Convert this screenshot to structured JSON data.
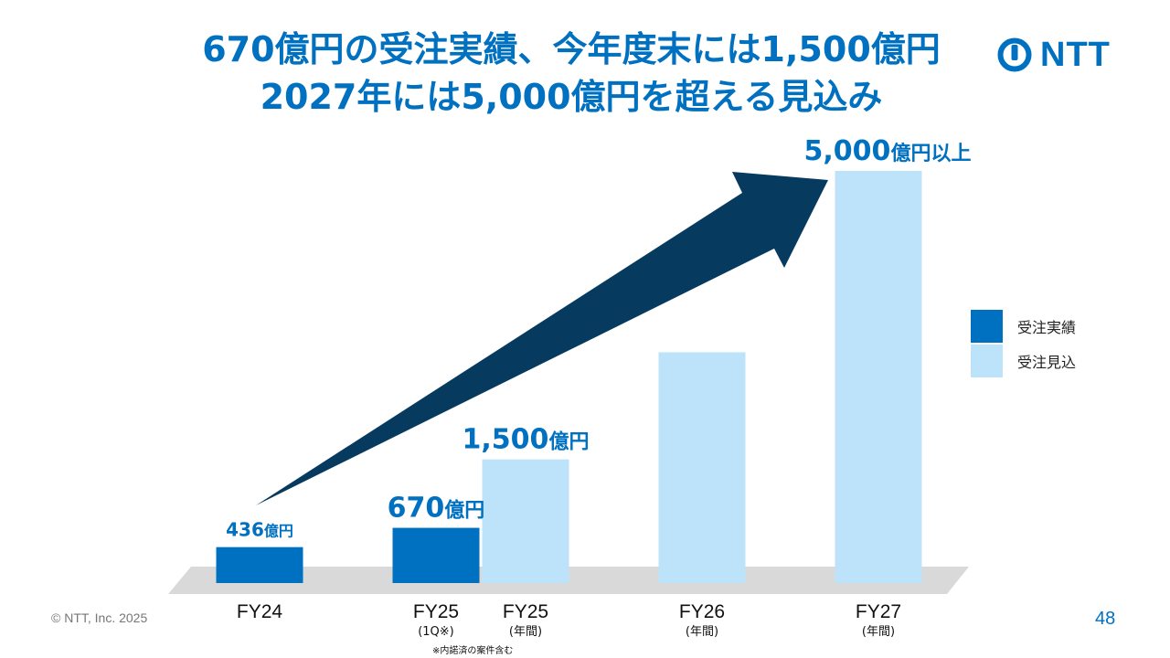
{
  "slide": {
    "title_line1": "670億円の受注実績、今年度末には1,500億円",
    "title_line2": "2027年には5,000億円を超える見込み",
    "logo_text": "NTT",
    "copyright": "© NTT, Inc.  2025",
    "page_number": "48",
    "footnote": "※内諾済の案件含む"
  },
  "colors": {
    "title": "#0070c0",
    "actual": "#0070c0",
    "forecast": "#bde3fb",
    "arrow": "#063a5e",
    "floor": "#d9d9d9"
  },
  "legend": [
    {
      "label": "受注実績",
      "color": "#0070c0"
    },
    {
      "label": "受注見込",
      "color": "#bde3fb"
    }
  ],
  "chart_data": {
    "type": "bar",
    "unit": "億円",
    "categories": [
      {
        "label": "FY24",
        "sublabel": ""
      },
      {
        "label": "FY25",
        "sublabel": "(1Q※)"
      },
      {
        "label": "FY25",
        "sublabel": "(年間)"
      },
      {
        "label": "FY26",
        "sublabel": "(年間)"
      },
      {
        "label": "FY27",
        "sublabel": "(年間)"
      }
    ],
    "bars": [
      {
        "value": 436,
        "kind": "actual",
        "label_num": "436",
        "label_unit": "億円"
      },
      {
        "value": 670,
        "kind": "actual",
        "label_num": "670",
        "label_unit": "億円"
      },
      {
        "value": 1500,
        "kind": "forecast",
        "label_num": "1,500",
        "label_unit": "億円"
      },
      {
        "value": 2800,
        "kind": "forecast",
        "label_num": "",
        "label_unit": ""
      },
      {
        "value": 5000,
        "kind": "forecast",
        "label_num": "5,000",
        "label_unit": "億円以上"
      }
    ],
    "series": [
      {
        "name": "受注実績",
        "kind": "actual"
      },
      {
        "name": "受注見込",
        "kind": "forecast"
      }
    ],
    "ylim": [
      0,
      5000
    ],
    "grid": false,
    "legend_position": "right"
  }
}
